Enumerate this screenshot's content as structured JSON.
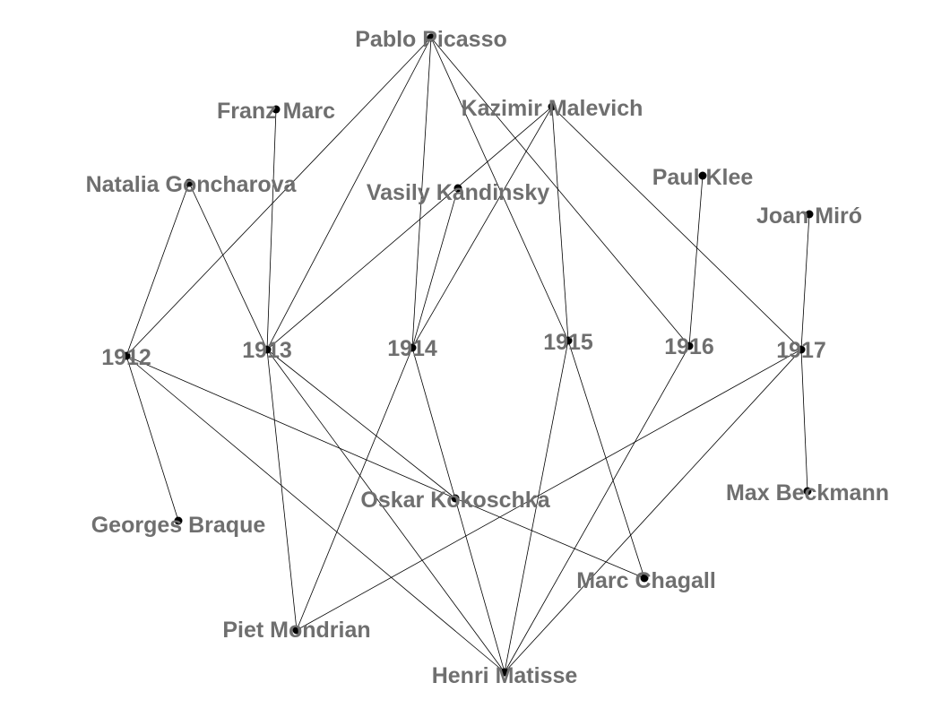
{
  "colors": {
    "edge": "#000000",
    "node": "#000000",
    "label": "#6f6f6f",
    "background": "#ffffff"
  },
  "nodes": [
    {
      "id": "picasso",
      "label": "Pablo Picasso"
    },
    {
      "id": "marc",
      "label": "Franz Marc"
    },
    {
      "id": "malevich",
      "label": "Kazimir Malevich"
    },
    {
      "id": "goncharova",
      "label": "Natalia Goncharova"
    },
    {
      "id": "kandinsky",
      "label": "Vasily Kandinsky"
    },
    {
      "id": "klee",
      "label": "Paul Klee"
    },
    {
      "id": "miro",
      "label": "Joan Miró"
    },
    {
      "id": "y1912",
      "label": "1912"
    },
    {
      "id": "y1913",
      "label": "1913"
    },
    {
      "id": "y1914",
      "label": "1914"
    },
    {
      "id": "y1915",
      "label": "1915"
    },
    {
      "id": "y1916",
      "label": "1916"
    },
    {
      "id": "y1917",
      "label": "1917"
    },
    {
      "id": "kokoschka",
      "label": "Oskar Kokoschka"
    },
    {
      "id": "beckmann",
      "label": "Max Beckmann"
    },
    {
      "id": "braque",
      "label": "Georges Braque"
    },
    {
      "id": "chagall",
      "label": "Marc Chagall"
    },
    {
      "id": "mondrian",
      "label": "Piet Mondrian"
    },
    {
      "id": "matisse",
      "label": "Henri Matisse"
    }
  ],
  "edges": [
    [
      "picasso",
      "y1912"
    ],
    [
      "picasso",
      "y1913"
    ],
    [
      "picasso",
      "y1914"
    ],
    [
      "picasso",
      "y1915"
    ],
    [
      "picasso",
      "y1916"
    ],
    [
      "marc",
      "y1913"
    ],
    [
      "malevich",
      "y1913"
    ],
    [
      "malevich",
      "y1914"
    ],
    [
      "malevich",
      "y1915"
    ],
    [
      "malevich",
      "y1917"
    ],
    [
      "goncharova",
      "y1912"
    ],
    [
      "goncharova",
      "y1913"
    ],
    [
      "kandinsky",
      "y1914"
    ],
    [
      "klee",
      "y1916"
    ],
    [
      "miro",
      "y1917"
    ],
    [
      "y1912",
      "braque"
    ],
    [
      "y1912",
      "kokoschka"
    ],
    [
      "y1912",
      "matisse"
    ],
    [
      "y1913",
      "mondrian"
    ],
    [
      "y1913",
      "kokoschka"
    ],
    [
      "y1913",
      "matisse"
    ],
    [
      "y1914",
      "mondrian"
    ],
    [
      "y1914",
      "matisse"
    ],
    [
      "y1915",
      "matisse"
    ],
    [
      "y1915",
      "chagall"
    ],
    [
      "y1916",
      "matisse"
    ],
    [
      "y1917",
      "beckmann"
    ],
    [
      "y1917",
      "mondrian"
    ],
    [
      "y1917",
      "matisse"
    ],
    [
      "kokoschka",
      "chagall"
    ]
  ]
}
